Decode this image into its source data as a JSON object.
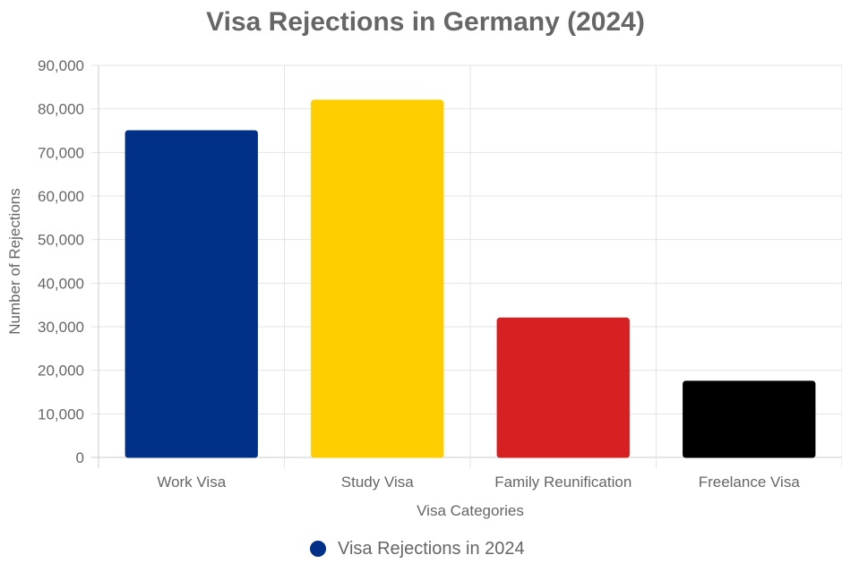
{
  "chart_data": {
    "type": "bar",
    "title": "Visa Rejections in Germany (2024)",
    "xlabel": "Visa Categories",
    "ylabel": "Number of Rejections",
    "categories": [
      "Work Visa",
      "Study Visa",
      "Family Reunification",
      "Freelance Visa"
    ],
    "series": [
      {
        "name": "Visa Rejections in 2024",
        "values": [
          75000,
          82000,
          32000,
          17500
        ],
        "colors": [
          "#003087",
          "#FFCE00",
          "#D62021",
          "#000000"
        ]
      }
    ],
    "ylim": [
      0,
      90000
    ],
    "yticks": [
      "0",
      "10,000",
      "20,000",
      "30,000",
      "40,000",
      "50,000",
      "60,000",
      "70,000",
      "80,000",
      "90,000"
    ],
    "grid": true,
    "legend_position": "bottom",
    "legend_color": "#003087"
  }
}
